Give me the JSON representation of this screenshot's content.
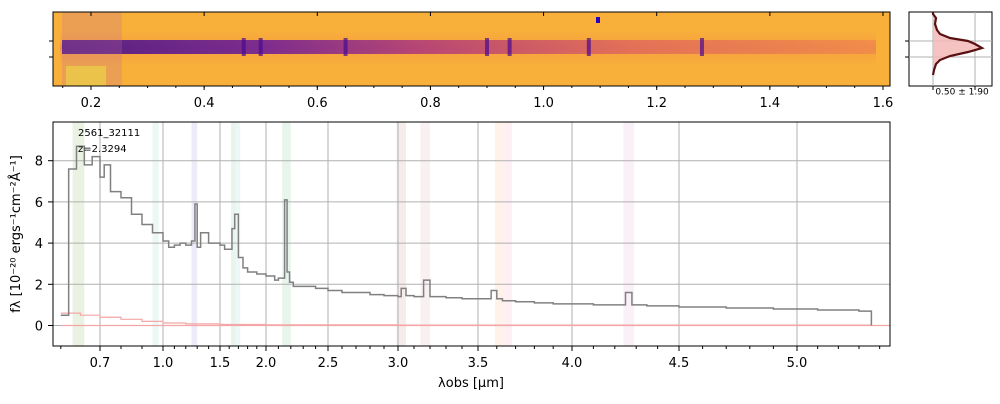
{
  "colors": {
    "spectrum": "#808080",
    "error": "#f4a6a6",
    "grid": "#b0b0b0",
    "axis": "#000000",
    "spectrum2d_bg": "#f8a93b",
    "spectrum2d_trace": "#5a1a9a",
    "profile_line": "#8b1a1a",
    "profile_fill": "#f5b8b8"
  },
  "chart_data": [
    {
      "type": "heatmap",
      "description_role": "2d-spectrum",
      "x_tick_labels": [
        "0.2",
        "0.4",
        "0.6",
        "0.8",
        "1.0",
        "1.2",
        "1.4",
        "1.6"
      ],
      "x_tick_values": [
        0.2,
        0.4,
        0.6,
        0.8,
        1.0,
        1.2,
        1.4,
        1.6
      ],
      "bright_lines_um": [
        0.47,
        0.5,
        0.65,
        0.9,
        0.94,
        1.08,
        1.28
      ],
      "colormap": "plasma"
    },
    {
      "type": "line",
      "description_role": "cross-dispersion-profile",
      "annotation": "0.50 ± 1.90"
    },
    {
      "type": "line",
      "description_role": "1d-spectrum",
      "label_id": "2561_32111",
      "label_z": "z=2.3294",
      "xlabel": "λobs [μm]",
      "ylabel": "fλ [10⁻²⁰ ergs⁻¹cm⁻²Å⁻¹]",
      "x_tick_labels": [
        "0.7",
        "1.0",
        "1.5",
        "2.0",
        "2.5",
        "3.0",
        "3.5",
        "4.0",
        "4.5",
        "5.0"
      ],
      "x_tick_values": [
        0.7,
        1.0,
        1.5,
        2.0,
        2.5,
        3.0,
        3.5,
        4.0,
        4.5,
        5.0
      ],
      "y_tick_labels": [
        "0",
        "2",
        "4",
        "6",
        "8"
      ],
      "y_tick_values": [
        0,
        2,
        4,
        6,
        8
      ],
      "ylim": [
        -1,
        9.8
      ],
      "xlim": [
        0.58,
        5.45
      ],
      "grid": true,
      "series": [
        {
          "role": "flux",
          "x": [
            0.6,
            0.62,
            0.64,
            0.66,
            0.68,
            0.7,
            0.72,
            0.75,
            0.8,
            0.85,
            0.9,
            0.95,
            1.0,
            1.05,
            1.1,
            1.15,
            1.2,
            1.25,
            1.28,
            1.3,
            1.33,
            1.4,
            1.5,
            1.55,
            1.6,
            1.63,
            1.66,
            1.7,
            1.75,
            1.8,
            1.9,
            2.0,
            2.07,
            2.1,
            2.15,
            2.17,
            2.19,
            2.22,
            2.3,
            2.4,
            2.5,
            2.6,
            2.7,
            2.8,
            2.9,
            3.0,
            3.02,
            3.05,
            3.1,
            3.16,
            3.2,
            3.3,
            3.4,
            3.5,
            3.57,
            3.6,
            3.63,
            3.7,
            3.8,
            3.9,
            4.0,
            4.1,
            4.2,
            4.25,
            4.28,
            4.35,
            4.5,
            4.6,
            4.7,
            4.8,
            4.9,
            5.0,
            5.1,
            5.2,
            5.3,
            5.35,
            5.36
          ],
          "y": [
            0.5,
            7.6,
            8.7,
            7.8,
            8.2,
            7.2,
            7.8,
            6.5,
            6.2,
            5.4,
            4.9,
            4.5,
            4.1,
            3.8,
            3.9,
            4.0,
            3.9,
            4.1,
            5.9,
            3.8,
            4.5,
            4.0,
            3.9,
            3.7,
            3.7,
            4.7,
            5.4,
            3.3,
            2.8,
            2.6,
            2.5,
            2.4,
            2.2,
            2.3,
            6.1,
            2.6,
            2.1,
            1.9,
            1.9,
            1.8,
            1.7,
            1.6,
            1.6,
            1.5,
            1.45,
            1.4,
            1.8,
            1.45,
            1.4,
            2.2,
            1.4,
            1.35,
            1.3,
            1.3,
            1.7,
            1.3,
            1.2,
            1.15,
            1.1,
            1.05,
            1.05,
            1.0,
            1.0,
            1.6,
            1.0,
            0.95,
            0.9,
            0.9,
            0.85,
            0.85,
            0.8,
            0.8,
            0.75,
            0.75,
            0.7,
            0.7,
            0.0
          ]
        },
        {
          "role": "error",
          "x": [
            0.6,
            0.65,
            0.7,
            0.8,
            0.9,
            1.0,
            1.2,
            1.5,
            2.0,
            3.0,
            4.0,
            5.0,
            5.36
          ],
          "y": [
            0.6,
            0.5,
            0.4,
            0.3,
            0.2,
            0.12,
            0.08,
            0.05,
            0.03,
            0.02,
            0.02,
            0.02,
            0.02
          ]
        }
      ],
      "emission_bands_um": [
        {
          "x0": 0.63,
          "x1": 0.66,
          "color": "#7ab648"
        },
        {
          "x0": 0.95,
          "x1": 0.98,
          "color": "#8fd3c8"
        },
        {
          "x0": 1.25,
          "x1": 1.3,
          "color": "#8a8ad6"
        },
        {
          "x0": 1.62,
          "x1": 1.67,
          "color": "#6fbf8e"
        },
        {
          "x0": 1.67,
          "x1": 1.72,
          "color": "#8fd3c8"
        },
        {
          "x0": 2.13,
          "x1": 2.2,
          "color": "#6fbf8e"
        },
        {
          "x0": 2.99,
          "x1": 3.05,
          "color": "#c78a8a"
        },
        {
          "x0": 3.14,
          "x1": 3.2,
          "color": "#d8a0b0"
        },
        {
          "x0": 3.59,
          "x1": 3.64,
          "color": "#f7b07a"
        },
        {
          "x0": 3.64,
          "x1": 3.68,
          "color": "#f0a0b8"
        },
        {
          "x0": 4.24,
          "x1": 4.29,
          "color": "#e0a0d0"
        }
      ]
    }
  ]
}
